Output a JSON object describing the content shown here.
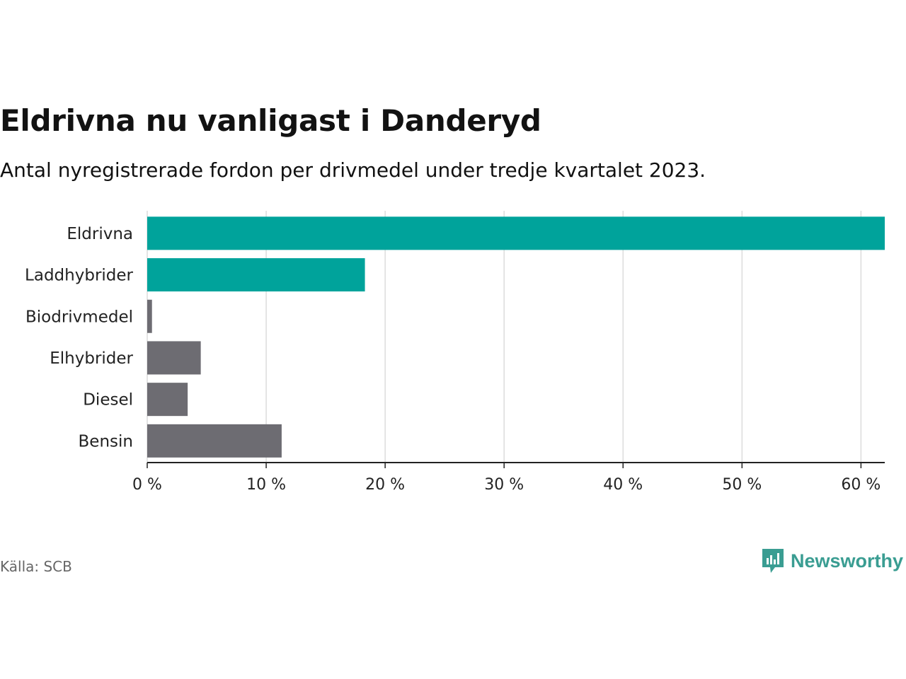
{
  "chart_data": {
    "type": "bar",
    "orientation": "horizontal",
    "title": "Eldrivna nu vanligast i Danderyd",
    "subtitle": "Antal nyregistrerade fordon per drivmedel under tredje kvartalet 2023.",
    "categories": [
      "Eldrivna",
      "Laddhybrider",
      "Biodrivmedel",
      "Elhybrider",
      "Diesel",
      "Bensin"
    ],
    "values": [
      62,
      18.3,
      0.4,
      4.5,
      3.4,
      11.3
    ],
    "highlight": [
      true,
      true,
      false,
      false,
      false,
      false
    ],
    "xlim": [
      0,
      62
    ],
    "xticks": [
      0,
      10,
      20,
      30,
      40,
      50,
      60
    ],
    "xtick_labels": [
      "0 %",
      "10 %",
      "20 %",
      "30 %",
      "40 %",
      "50 %",
      "60 %"
    ],
    "xlabel": "",
    "ylabel": "",
    "grid": true,
    "colors": {
      "highlight": "#00a39b",
      "default": "#6d6c72"
    }
  },
  "footer": {
    "source": "Källa: SCB",
    "brand": "Newsworthy",
    "brand_color": "#3a9d92"
  }
}
